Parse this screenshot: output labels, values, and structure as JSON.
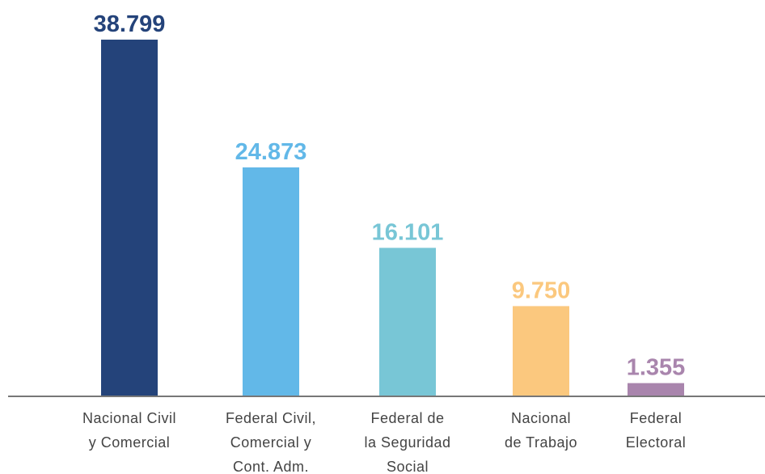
{
  "chart_data": {
    "type": "bar",
    "categories": [
      [
        "Nacional Civil",
        "y Comercial"
      ],
      [
        "Federal Civil,",
        "Comercial y",
        "Cont. Adm."
      ],
      [
        "Federal de",
        "la Seguridad",
        "Social"
      ],
      [
        "Nacional",
        "de Trabajo"
      ],
      [
        "Federal",
        "Electoral"
      ]
    ],
    "values": [
      38799,
      24873,
      16101,
      9750,
      1355
    ],
    "value_labels": [
      "38.799",
      "24.873",
      "16.101",
      "9.750",
      "1.355"
    ],
    "colors": [
      "#24437a",
      "#62b8e8",
      "#78c6d6",
      "#fbc87e",
      "#a985ad"
    ],
    "ylim": [
      0,
      40000
    ]
  }
}
